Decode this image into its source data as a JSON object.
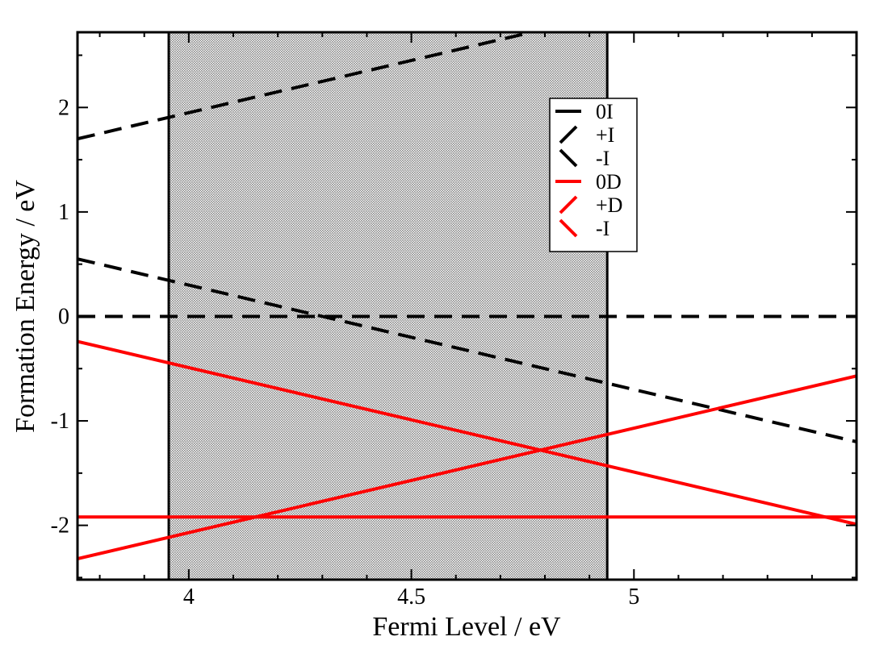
{
  "chart_data": {
    "type": "line",
    "xlabel": "Fermi Level / eV",
    "ylabel": "Formation Energy / eV",
    "xlim": [
      3.75,
      5.5
    ],
    "ylim": [
      -2.52,
      2.72
    ],
    "x_ticks": [
      {
        "value": 4,
        "label": "4"
      },
      {
        "value": 4.5,
        "label": "4.5"
      },
      {
        "value": 5,
        "label": "5"
      }
    ],
    "y_ticks": [
      {
        "value": -2,
        "label": "-2"
      },
      {
        "value": -1,
        "label": "-1"
      },
      {
        "value": 0,
        "label": "0"
      },
      {
        "value": 1,
        "label": "1"
      },
      {
        "value": 2,
        "label": "2"
      }
    ],
    "shaded_region": {
      "x_start": 3.955,
      "x_end": 4.94,
      "pattern": "dotted",
      "color": "#b0b0b0"
    },
    "legend_position": "upper-center-right",
    "series": [
      {
        "name": "0I",
        "color": "#000000",
        "style": "dashed",
        "legend_icon": "horizontal",
        "points": [
          [
            3.75,
            0.0
          ],
          [
            5.5,
            0.0
          ]
        ]
      },
      {
        "name": "+I",
        "color": "#000000",
        "style": "dashed",
        "legend_icon": "rising",
        "points": [
          [
            3.75,
            1.7
          ],
          [
            4.75,
            2.7
          ]
        ]
      },
      {
        "name": "-I",
        "color": "#000000",
        "style": "dashed",
        "legend_icon": "falling",
        "points": [
          [
            3.75,
            0.55
          ],
          [
            5.5,
            -1.2
          ]
        ]
      },
      {
        "name": "0D",
        "color": "#ff0000",
        "style": "solid",
        "legend_icon": "horizontal",
        "points": [
          [
            3.75,
            -1.92
          ],
          [
            5.5,
            -1.92
          ]
        ]
      },
      {
        "name": "+D",
        "color": "#ff0000",
        "style": "solid",
        "legend_icon": "rising",
        "points": [
          [
            3.75,
            -2.32
          ],
          [
            5.5,
            -0.57
          ]
        ]
      },
      {
        "name": "-I",
        "color": "#ff0000",
        "style": "solid",
        "legend_icon": "falling",
        "points": [
          [
            3.75,
            -0.24
          ],
          [
            5.5,
            -1.99
          ]
        ]
      }
    ]
  }
}
